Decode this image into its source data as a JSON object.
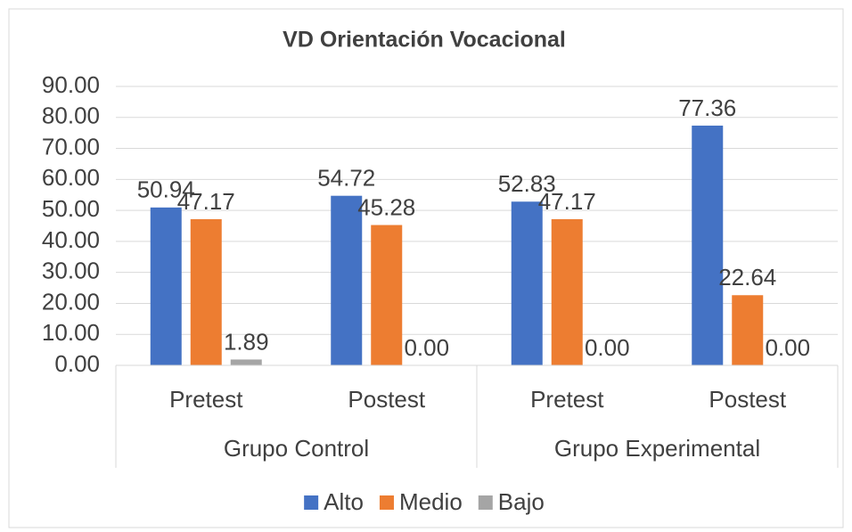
{
  "chart_data": {
    "type": "bar",
    "title": "VD Orientación Vocacional",
    "categories": [
      "Pretest",
      "Postest",
      "Pretest",
      "Postest"
    ],
    "groups": [
      "Grupo Control",
      "Grupo Experimental"
    ],
    "series": [
      {
        "name": "Alto",
        "color": "#4472c4",
        "values": [
          50.94,
          54.72,
          52.83,
          77.36
        ],
        "value_labels": [
          "50.94",
          "54.72",
          "52.83",
          "77.36"
        ]
      },
      {
        "name": "Medio",
        "color": "#ed7d31",
        "values": [
          47.17,
          45.28,
          47.17,
          22.64
        ],
        "value_labels": [
          "47.17",
          "45.28",
          "47.17",
          "22.64"
        ]
      },
      {
        "name": "Bajo",
        "color": "#a5a5a5",
        "values": [
          1.89,
          0,
          0,
          0
        ],
        "value_labels": [
          "1.89",
          "0.00",
          "0.00",
          "0.00"
        ]
      }
    ],
    "ylim": [
      0,
      90
    ],
    "yticks": [
      {
        "value": 0,
        "label": "0.00"
      },
      {
        "value": 10,
        "label": "10.00"
      },
      {
        "value": 20,
        "label": "20.00"
      },
      {
        "value": 30,
        "label": "30.00"
      },
      {
        "value": 40,
        "label": "40.00"
      },
      {
        "value": 50,
        "label": "50.00"
      },
      {
        "value": 60,
        "label": "60.00"
      },
      {
        "value": 70,
        "label": "70.00"
      },
      {
        "value": 80,
        "label": "80.00"
      },
      {
        "value": 90,
        "label": "90.00"
      }
    ],
    "grid": true,
    "legend": "bottom"
  }
}
